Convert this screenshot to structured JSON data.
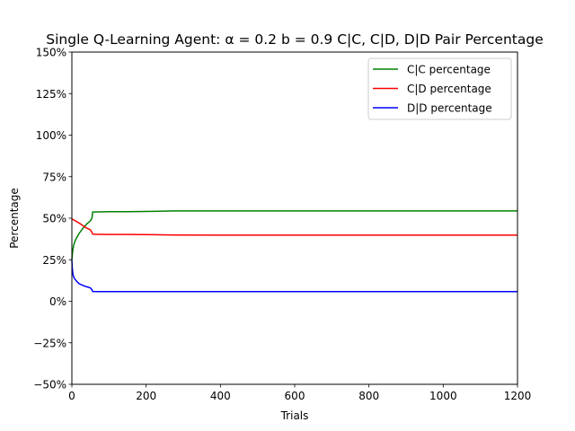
{
  "chart_data": {
    "type": "line",
    "title": "Single Q-Learning Agent: α = 0.2 b = 0.9  C|C, C|D, D|D Pair Percentage",
    "xlabel": "Trials",
    "ylabel": "Percentage",
    "xlim": [
      0,
      1200
    ],
    "ylim": [
      -50,
      150
    ],
    "xticks": [
      0,
      200,
      400,
      600,
      800,
      1000,
      1200
    ],
    "yticks": [
      -50,
      -25,
      0,
      25,
      50,
      75,
      100,
      125,
      150
    ],
    "xtick_labels": [
      "0",
      "200",
      "400",
      "600",
      "800",
      "1000",
      "1200"
    ],
    "ytick_labels": [
      "−50%",
      "−25%",
      "0%",
      "25%",
      "50%",
      "75%",
      "100%",
      "125%",
      "150%"
    ],
    "grid": false,
    "legend_position": "top-right",
    "series": [
      {
        "name": "C|C percentage",
        "color": "#008000",
        "x": [
          0,
          2,
          5,
          10,
          20,
          30,
          40,
          50,
          54,
          56,
          70,
          100,
          150,
          220,
          280,
          400,
          600,
          800,
          1000,
          1200
        ],
        "y": [
          25,
          30,
          34,
          37,
          41,
          44,
          46.5,
          48.5,
          50,
          53.7,
          53.8,
          53.9,
          53.9,
          54.1,
          54.4,
          54.4,
          54.4,
          54.4,
          54.4,
          54.4
        ]
      },
      {
        "name": "C|D percentage",
        "color": "#ff0000",
        "x": [
          0,
          5,
          10,
          20,
          30,
          40,
          50,
          54,
          56,
          70,
          100,
          150,
          220,
          280,
          400,
          600,
          800,
          1000,
          1200
        ],
        "y": [
          49.5,
          49,
          48.3,
          47,
          45.5,
          44,
          43,
          41.5,
          40.4,
          40.3,
          40.2,
          40.2,
          40.1,
          39.9,
          39.8,
          39.8,
          39.8,
          39.8,
          39.8
        ]
      },
      {
        "name": "D|D percentage",
        "color": "#0000ff",
        "x": [
          0,
          1,
          3,
          6,
          10,
          15,
          20,
          30,
          40,
          50,
          54,
          56,
          70,
          100,
          200,
          400,
          600,
          800,
          1000,
          1200
        ],
        "y": [
          25,
          20,
          16,
          14,
          12.8,
          11.5,
          10.5,
          9.5,
          8.7,
          8,
          7,
          5.9,
          5.8,
          5.8,
          5.8,
          5.8,
          5.8,
          5.8,
          5.8,
          5.8
        ]
      }
    ]
  }
}
